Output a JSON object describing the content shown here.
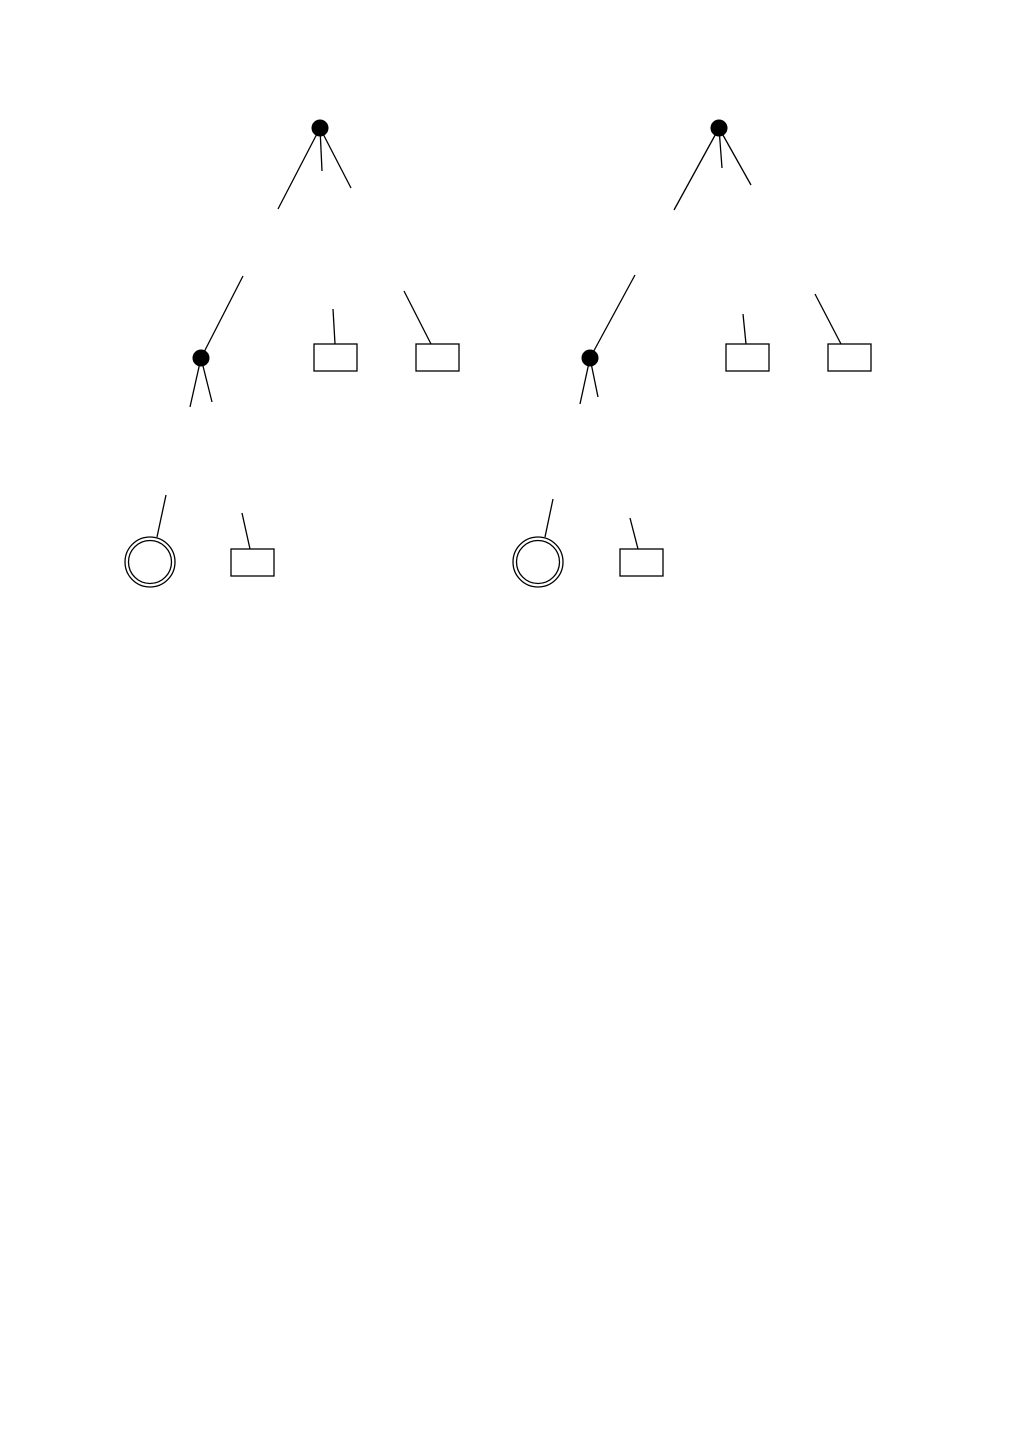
{
  "diagram": {
    "kind": "tree-pair",
    "trees": [
      {
        "name": "tree-left",
        "node_types": [
          "branch",
          "branch",
          "box",
          "box",
          "double-circle",
          "box"
        ]
      },
      {
        "name": "tree-right",
        "node_types": [
          "branch",
          "branch",
          "box",
          "box",
          "double-circle",
          "box"
        ]
      }
    ],
    "colors": {
      "line": "#000000",
      "background": "#ffffff",
      "branch_fill": "#000000"
    }
  }
}
